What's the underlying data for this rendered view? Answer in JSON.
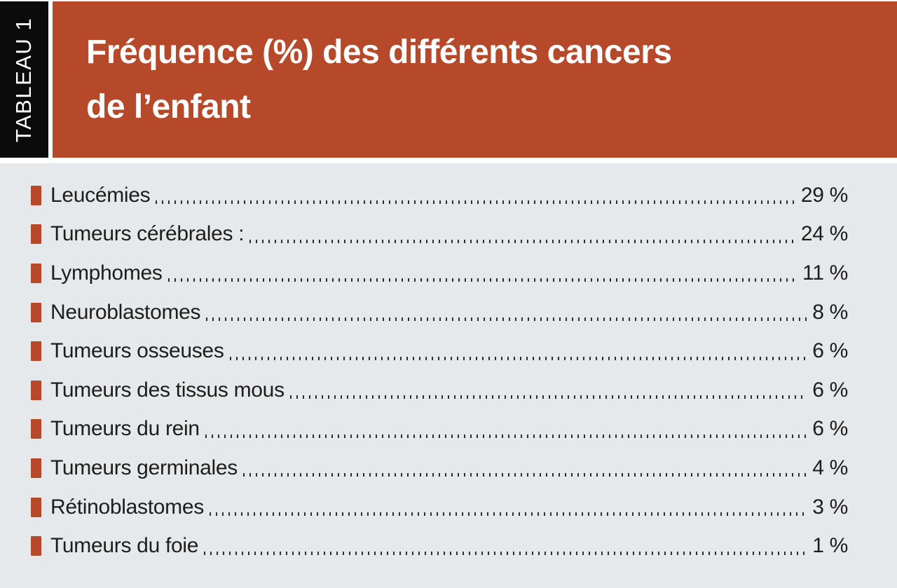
{
  "tab_label": "TABLEAU 1",
  "title": {
    "line1": "Fréquence (%) des différents cancers",
    "line2": "de l’enfant"
  },
  "colors": {
    "accent": "#b6492a",
    "tab_black": "#0b0b0b",
    "panel_bg": "#e6e9eb",
    "text": "#1d1d1b"
  },
  "table": {
    "rows": [
      {
        "label": "Leucémies",
        "value": "29 %"
      },
      {
        "label": "Tumeurs cérébrales :",
        "value": "24 %"
      },
      {
        "label": "Lymphomes",
        "value": "11 %"
      },
      {
        "label": "Neuroblastomes",
        "value": "8 %"
      },
      {
        "label": "Tumeurs osseuses",
        "value": "6 %"
      },
      {
        "label": "Tumeurs des tissus mous",
        "value": "6 %"
      },
      {
        "label": "Tumeurs du rein",
        "value": "6 %"
      },
      {
        "label": "Tumeurs germinales",
        "value": "4 %"
      },
      {
        "label": "Rétinoblastomes",
        "value": "3 %"
      },
      {
        "label": "Tumeurs du foie",
        "value": "1 %"
      }
    ]
  }
}
